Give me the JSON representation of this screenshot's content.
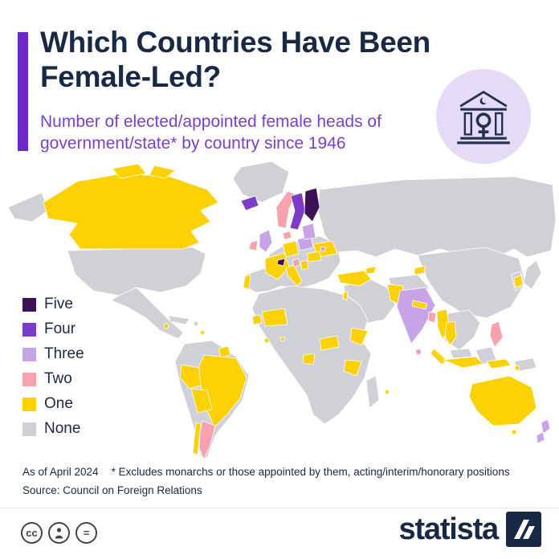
{
  "header": {
    "title": "Which Countries Have Been Female-Led?",
    "subtitle": "Number of elected/appointed female heads of government/state* by country since 1946"
  },
  "badge": {
    "icon": "government-building-with-female-symbol-icon"
  },
  "legend": {
    "items": [
      {
        "label": "Five",
        "color": "#3c1156"
      },
      {
        "label": "Four",
        "color": "#7d3cc8"
      },
      {
        "label": "Three",
        "color": "#c7a4e8"
      },
      {
        "label": "Two",
        "color": "#f6a3af"
      },
      {
        "label": "One",
        "color": "#fdd205"
      },
      {
        "label": "None",
        "color": "#d0d1d6"
      }
    ]
  },
  "map": {
    "type": "world-choropleth",
    "regions": {
      "greenland": "None",
      "alaska": "None",
      "usa": "None",
      "mexico": "None",
      "cuba": "None",
      "canada": "One",
      "nicaragua": "One",
      "trinidad_tobago": "One",
      "guyana": "One",
      "south_america": "None",
      "brazil": "One",
      "peru": "One",
      "bolivia": "One",
      "chile": "One",
      "argentina": "Two",
      "europe": "None",
      "iceland": "Four",
      "ireland": "Two",
      "uk": "Three",
      "portugal": "One",
      "france": "One",
      "germany": "One",
      "switzerland": "Five",
      "italy": "One",
      "poland": "Three",
      "baltics": "Three",
      "denmark": "Two",
      "norway": "Two",
      "sweden": "Four",
      "finland": "Five",
      "ukraine": "One",
      "romania": "One",
      "croatia": "Two",
      "serbia": "One",
      "moldova": "Three",
      "russia": "None",
      "middle_east": "None",
      "iran": "None",
      "turkey": "One",
      "israel": "One",
      "georgia": "One",
      "kyrgyzstan": "One",
      "africa": "None",
      "madagascar": "None",
      "senegal": "One",
      "mali": "One",
      "liberia": "One",
      "togo": "One",
      "gabon": "One",
      "central_african_republic": "One",
      "ethiopia": "One",
      "tanzania": "One",
      "mauritius": "One",
      "pakistan": "One",
      "india": "Three",
      "nepal": "One",
      "bangladesh": "Two",
      "sri_lanka": "Two",
      "china": "None",
      "korea_peninsula": "None",
      "south_korea": "One",
      "japan": "None",
      "sea_mainland": "None",
      "myanmar": "One",
      "thailand": "One",
      "malaysia": "None",
      "borneo": "None",
      "indonesia": "One",
      "philippines": "Two",
      "papua_new_guinea": "None",
      "australia": "One",
      "new_zealand": "Three"
    }
  },
  "footer": {
    "as_of": "As of April 2024",
    "footnote": "* Excludes monarchs or those appointed by them, acting/interim/honorary positions",
    "source": "Source: Council on Foreign Relations"
  },
  "branding": {
    "logo_text": "statista",
    "cc_label": "cc",
    "nd_label": "=",
    "license_icons": [
      "cc-icon",
      "attribution-person-icon",
      "equals-icon"
    ]
  },
  "colors": {
    "background": "#ffffff",
    "accent": "#6d28c9",
    "navy": "#172944",
    "purple": "#7b40c8",
    "badge_bg": "#e6dbf7",
    "badge_icon": "#23304f",
    "divider": "#e9e6f1",
    "icon_gray": "#454545",
    "ocean": "#ffffff"
  }
}
